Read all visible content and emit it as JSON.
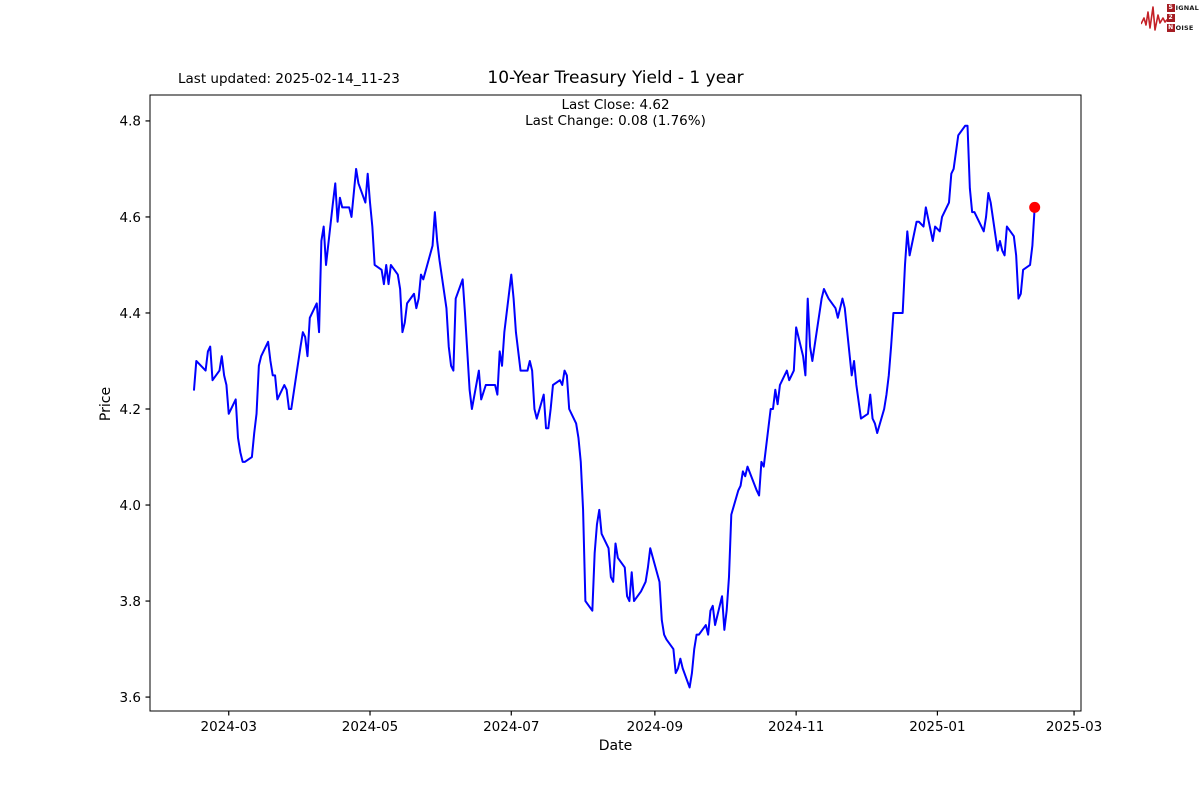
{
  "page": {
    "background": "#ffffff"
  },
  "header": {
    "last_updated": "Last updated: 2025-02-14_11-23",
    "title": "10-Year Treasury Yield - 1 year",
    "subtitle_close": "Last Close: 4.62",
    "subtitle_change": "Last Change: 0.08 (1.76%)"
  },
  "branding": {
    "logo_top_boxed": "S",
    "logo_top_rest": "IGNAL",
    "logo_mid_boxed": "2",
    "logo_bottom_boxed": "N",
    "logo_bottom_rest": "OISE",
    "logo_box_color": "#a51d23",
    "logo_wave_color": "#c42127"
  },
  "chart_data": {
    "type": "line",
    "title": "10-Year Treasury Yield - 1 year",
    "xlabel": "Date",
    "ylabel": "Price",
    "last_close": 4.62,
    "last_change": 0.08,
    "last_change_pct": 1.76,
    "line_color": "#0000ff",
    "marker_color": "#ff0000",
    "grid": false,
    "legend": false,
    "ylim": [
      3.571,
      4.854
    ],
    "x_range": [
      "2024-01-27",
      "2025-03-04"
    ],
    "yticks": [
      {
        "value": 3.6,
        "label": "3.6"
      },
      {
        "value": 3.8,
        "label": "3.8"
      },
      {
        "value": 4.0,
        "label": "4.0"
      },
      {
        "value": 4.2,
        "label": "4.2"
      },
      {
        "value": 4.4,
        "label": "4.4"
      },
      {
        "value": 4.6,
        "label": "4.6"
      },
      {
        "value": 4.8,
        "label": "4.8"
      }
    ],
    "xticks": [
      {
        "date": "2024-03-01",
        "label": "2024-03"
      },
      {
        "date": "2024-05-01",
        "label": "2024-05"
      },
      {
        "date": "2024-07-01",
        "label": "2024-07"
      },
      {
        "date": "2024-09-01",
        "label": "2024-09"
      },
      {
        "date": "2024-11-01",
        "label": "2024-11"
      },
      {
        "date": "2025-01-01",
        "label": "2025-01"
      },
      {
        "date": "2025-03-01",
        "label": "2025-03"
      }
    ],
    "series": [
      {
        "name": "10-Year Treasury Yield",
        "points": [
          [
            "2024-02-15",
            4.24
          ],
          [
            "2024-02-16",
            4.3
          ],
          [
            "2024-02-20",
            4.28
          ],
          [
            "2024-02-21",
            4.32
          ],
          [
            "2024-02-22",
            4.33
          ],
          [
            "2024-02-23",
            4.26
          ],
          [
            "2024-02-26",
            4.28
          ],
          [
            "2024-02-27",
            4.31
          ],
          [
            "2024-02-28",
            4.27
          ],
          [
            "2024-02-29",
            4.25
          ],
          [
            "2024-03-01",
            4.19
          ],
          [
            "2024-03-04",
            4.22
          ],
          [
            "2024-03-05",
            4.14
          ],
          [
            "2024-03-06",
            4.11
          ],
          [
            "2024-03-07",
            4.09
          ],
          [
            "2024-03-08",
            4.09
          ],
          [
            "2024-03-11",
            4.1
          ],
          [
            "2024-03-12",
            4.15
          ],
          [
            "2024-03-13",
            4.19
          ],
          [
            "2024-03-14",
            4.29
          ],
          [
            "2024-03-15",
            4.31
          ],
          [
            "2024-03-18",
            4.34
          ],
          [
            "2024-03-19",
            4.3
          ],
          [
            "2024-03-20",
            4.27
          ],
          [
            "2024-03-21",
            4.27
          ],
          [
            "2024-03-22",
            4.22
          ],
          [
            "2024-03-25",
            4.25
          ],
          [
            "2024-03-26",
            4.24
          ],
          [
            "2024-03-27",
            4.2
          ],
          [
            "2024-03-28",
            4.2
          ],
          [
            "2024-04-01",
            4.33
          ],
          [
            "2024-04-02",
            4.36
          ],
          [
            "2024-04-03",
            4.35
          ],
          [
            "2024-04-04",
            4.31
          ],
          [
            "2024-04-05",
            4.39
          ],
          [
            "2024-04-08",
            4.42
          ],
          [
            "2024-04-09",
            4.36
          ],
          [
            "2024-04-10",
            4.55
          ],
          [
            "2024-04-11",
            4.58
          ],
          [
            "2024-04-12",
            4.5
          ],
          [
            "2024-04-15",
            4.63
          ],
          [
            "2024-04-16",
            4.67
          ],
          [
            "2024-04-17",
            4.59
          ],
          [
            "2024-04-18",
            4.64
          ],
          [
            "2024-04-19",
            4.62
          ],
          [
            "2024-04-22",
            4.62
          ],
          [
            "2024-04-23",
            4.6
          ],
          [
            "2024-04-24",
            4.65
          ],
          [
            "2024-04-25",
            4.7
          ],
          [
            "2024-04-26",
            4.67
          ],
          [
            "2024-04-29",
            4.63
          ],
          [
            "2024-04-30",
            4.69
          ],
          [
            "2024-05-01",
            4.63
          ],
          [
            "2024-05-02",
            4.58
          ],
          [
            "2024-05-03",
            4.5
          ],
          [
            "2024-05-06",
            4.49
          ],
          [
            "2024-05-07",
            4.46
          ],
          [
            "2024-05-08",
            4.5
          ],
          [
            "2024-05-09",
            4.46
          ],
          [
            "2024-05-10",
            4.5
          ],
          [
            "2024-05-13",
            4.48
          ],
          [
            "2024-05-14",
            4.45
          ],
          [
            "2024-05-15",
            4.36
          ],
          [
            "2024-05-16",
            4.38
          ],
          [
            "2024-05-17",
            4.42
          ],
          [
            "2024-05-20",
            4.44
          ],
          [
            "2024-05-21",
            4.41
          ],
          [
            "2024-05-22",
            4.43
          ],
          [
            "2024-05-23",
            4.48
          ],
          [
            "2024-05-24",
            4.47
          ],
          [
            "2024-05-28",
            4.54
          ],
          [
            "2024-05-29",
            4.61
          ],
          [
            "2024-05-30",
            4.55
          ],
          [
            "2024-05-31",
            4.51
          ],
          [
            "2024-06-03",
            4.41
          ],
          [
            "2024-06-04",
            4.33
          ],
          [
            "2024-06-05",
            4.29
          ],
          [
            "2024-06-06",
            4.28
          ],
          [
            "2024-06-07",
            4.43
          ],
          [
            "2024-06-10",
            4.47
          ],
          [
            "2024-06-11",
            4.4
          ],
          [
            "2024-06-12",
            4.32
          ],
          [
            "2024-06-13",
            4.24
          ],
          [
            "2024-06-14",
            4.2
          ],
          [
            "2024-06-17",
            4.28
          ],
          [
            "2024-06-18",
            4.22
          ],
          [
            "2024-06-20",
            4.25
          ],
          [
            "2024-06-21",
            4.25
          ],
          [
            "2024-06-24",
            4.25
          ],
          [
            "2024-06-25",
            4.23
          ],
          [
            "2024-06-26",
            4.32
          ],
          [
            "2024-06-27",
            4.29
          ],
          [
            "2024-06-28",
            4.36
          ],
          [
            "2024-07-01",
            4.48
          ],
          [
            "2024-07-02",
            4.43
          ],
          [
            "2024-07-03",
            4.36
          ],
          [
            "2024-07-05",
            4.28
          ],
          [
            "2024-07-08",
            4.28
          ],
          [
            "2024-07-09",
            4.3
          ],
          [
            "2024-07-10",
            4.28
          ],
          [
            "2024-07-11",
            4.2
          ],
          [
            "2024-07-12",
            4.18
          ],
          [
            "2024-07-15",
            4.23
          ],
          [
            "2024-07-16",
            4.16
          ],
          [
            "2024-07-17",
            4.16
          ],
          [
            "2024-07-18",
            4.2
          ],
          [
            "2024-07-19",
            4.25
          ],
          [
            "2024-07-22",
            4.26
          ],
          [
            "2024-07-23",
            4.25
          ],
          [
            "2024-07-24",
            4.28
          ],
          [
            "2024-07-25",
            4.27
          ],
          [
            "2024-07-26",
            4.2
          ],
          [
            "2024-07-29",
            4.17
          ],
          [
            "2024-07-30",
            4.14
          ],
          [
            "2024-07-31",
            4.09
          ],
          [
            "2024-08-01",
            3.99
          ],
          [
            "2024-08-02",
            3.8
          ],
          [
            "2024-08-05",
            3.78
          ],
          [
            "2024-08-06",
            3.9
          ],
          [
            "2024-08-07",
            3.96
          ],
          [
            "2024-08-08",
            3.99
          ],
          [
            "2024-08-09",
            3.94
          ],
          [
            "2024-08-12",
            3.91
          ],
          [
            "2024-08-13",
            3.85
          ],
          [
            "2024-08-14",
            3.84
          ],
          [
            "2024-08-15",
            3.92
          ],
          [
            "2024-08-16",
            3.89
          ],
          [
            "2024-08-19",
            3.87
          ],
          [
            "2024-08-20",
            3.81
          ],
          [
            "2024-08-21",
            3.8
          ],
          [
            "2024-08-22",
            3.86
          ],
          [
            "2024-08-23",
            3.8
          ],
          [
            "2024-08-26",
            3.82
          ],
          [
            "2024-08-27",
            3.83
          ],
          [
            "2024-08-28",
            3.84
          ],
          [
            "2024-08-29",
            3.87
          ],
          [
            "2024-08-30",
            3.91
          ],
          [
            "2024-09-03",
            3.84
          ],
          [
            "2024-09-04",
            3.76
          ],
          [
            "2024-09-05",
            3.73
          ],
          [
            "2024-09-06",
            3.72
          ],
          [
            "2024-09-09",
            3.7
          ],
          [
            "2024-09-10",
            3.65
          ],
          [
            "2024-09-11",
            3.66
          ],
          [
            "2024-09-12",
            3.68
          ],
          [
            "2024-09-13",
            3.66
          ],
          [
            "2024-09-16",
            3.62
          ],
          [
            "2024-09-17",
            3.65
          ],
          [
            "2024-09-18",
            3.7
          ],
          [
            "2024-09-19",
            3.73
          ],
          [
            "2024-09-20",
            3.73
          ],
          [
            "2024-09-23",
            3.75
          ],
          [
            "2024-09-24",
            3.73
          ],
          [
            "2024-09-25",
            3.78
          ],
          [
            "2024-09-26",
            3.79
          ],
          [
            "2024-09-27",
            3.75
          ],
          [
            "2024-09-30",
            3.81
          ],
          [
            "2024-10-01",
            3.74
          ],
          [
            "2024-10-02",
            3.78
          ],
          [
            "2024-10-03",
            3.85
          ],
          [
            "2024-10-04",
            3.98
          ],
          [
            "2024-10-07",
            4.03
          ],
          [
            "2024-10-08",
            4.04
          ],
          [
            "2024-10-09",
            4.07
          ],
          [
            "2024-10-10",
            4.06
          ],
          [
            "2024-10-11",
            4.08
          ],
          [
            "2024-10-15",
            4.03
          ],
          [
            "2024-10-16",
            4.02
          ],
          [
            "2024-10-17",
            4.09
          ],
          [
            "2024-10-18",
            4.08
          ],
          [
            "2024-10-21",
            4.2
          ],
          [
            "2024-10-22",
            4.2
          ],
          [
            "2024-10-23",
            4.24
          ],
          [
            "2024-10-24",
            4.21
          ],
          [
            "2024-10-25",
            4.25
          ],
          [
            "2024-10-28",
            4.28
          ],
          [
            "2024-10-29",
            4.26
          ],
          [
            "2024-10-30",
            4.27
          ],
          [
            "2024-10-31",
            4.28
          ],
          [
            "2024-11-01",
            4.37
          ],
          [
            "2024-11-04",
            4.31
          ],
          [
            "2024-11-05",
            4.27
          ],
          [
            "2024-11-06",
            4.43
          ],
          [
            "2024-11-07",
            4.33
          ],
          [
            "2024-11-08",
            4.3
          ],
          [
            "2024-11-12",
            4.43
          ],
          [
            "2024-11-13",
            4.45
          ],
          [
            "2024-11-14",
            4.44
          ],
          [
            "2024-11-15",
            4.43
          ],
          [
            "2024-11-18",
            4.41
          ],
          [
            "2024-11-19",
            4.39
          ],
          [
            "2024-11-20",
            4.41
          ],
          [
            "2024-11-21",
            4.43
          ],
          [
            "2024-11-22",
            4.41
          ],
          [
            "2024-11-25",
            4.27
          ],
          [
            "2024-11-26",
            4.3
          ],
          [
            "2024-11-27",
            4.25
          ],
          [
            "2024-11-29",
            4.18
          ],
          [
            "2024-12-02",
            4.19
          ],
          [
            "2024-12-03",
            4.23
          ],
          [
            "2024-12-04",
            4.18
          ],
          [
            "2024-12-05",
            4.17
          ],
          [
            "2024-12-06",
            4.15
          ],
          [
            "2024-12-09",
            4.2
          ],
          [
            "2024-12-10",
            4.23
          ],
          [
            "2024-12-11",
            4.27
          ],
          [
            "2024-12-12",
            4.33
          ],
          [
            "2024-12-13",
            4.4
          ],
          [
            "2024-12-16",
            4.4
          ],
          [
            "2024-12-17",
            4.4
          ],
          [
            "2024-12-18",
            4.5
          ],
          [
            "2024-12-19",
            4.57
          ],
          [
            "2024-12-20",
            4.52
          ],
          [
            "2024-12-23",
            4.59
          ],
          [
            "2024-12-24",
            4.59
          ],
          [
            "2024-12-26",
            4.58
          ],
          [
            "2024-12-27",
            4.62
          ],
          [
            "2024-12-30",
            4.55
          ],
          [
            "2024-12-31",
            4.58
          ],
          [
            "2025-01-02",
            4.57
          ],
          [
            "2025-01-03",
            4.6
          ],
          [
            "2025-01-06",
            4.63
          ],
          [
            "2025-01-07",
            4.69
          ],
          [
            "2025-01-08",
            4.7
          ],
          [
            "2025-01-10",
            4.77
          ],
          [
            "2025-01-13",
            4.79
          ],
          [
            "2025-01-14",
            4.79
          ],
          [
            "2025-01-15",
            4.66
          ],
          [
            "2025-01-16",
            4.61
          ],
          [
            "2025-01-17",
            4.61
          ],
          [
            "2025-01-21",
            4.57
          ],
          [
            "2025-01-22",
            4.6
          ],
          [
            "2025-01-23",
            4.65
          ],
          [
            "2025-01-24",
            4.63
          ],
          [
            "2025-01-27",
            4.53
          ],
          [
            "2025-01-28",
            4.55
          ],
          [
            "2025-01-29",
            4.53
          ],
          [
            "2025-01-30",
            4.52
          ],
          [
            "2025-01-31",
            4.58
          ],
          [
            "2025-02-03",
            4.56
          ],
          [
            "2025-02-04",
            4.52
          ],
          [
            "2025-02-05",
            4.43
          ],
          [
            "2025-02-06",
            4.44
          ],
          [
            "2025-02-07",
            4.49
          ],
          [
            "2025-02-10",
            4.5
          ],
          [
            "2025-02-11",
            4.54
          ],
          [
            "2025-02-12",
            4.62
          ]
        ]
      }
    ]
  }
}
